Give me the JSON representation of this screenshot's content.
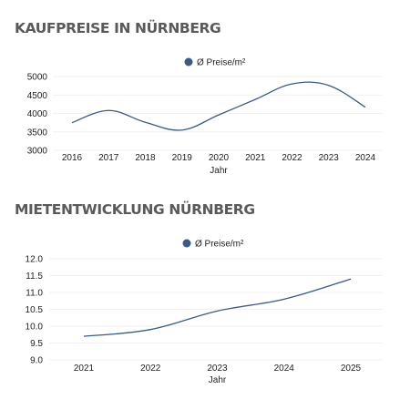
{
  "sections": [
    {
      "title": "KAUFPREISE IN NÜRNBERG",
      "chart_data": {
        "type": "line",
        "x": [
          "2016",
          "2017",
          "2018",
          "2019",
          "2020",
          "2021",
          "2022",
          "2023",
          "2024"
        ],
        "series": [
          {
            "name": "Ø Preise/m²",
            "values": [
              3750,
              4080,
              3760,
              3550,
              3960,
              4380,
              4800,
              4760,
              4170
            ]
          }
        ],
        "xlabel": "Jahr",
        "ylabel": "",
        "ylim": [
          3000,
          5000
        ],
        "yticks": [
          3000,
          3500,
          4000,
          4500,
          5000
        ],
        "legend": "top-center",
        "grid": true
      }
    },
    {
      "title": "MIETENTWICKLUNG NÜRNBERG",
      "chart_data": {
        "type": "line",
        "x": [
          "2021",
          "2022",
          "2023",
          "2024",
          "2025"
        ],
        "series": [
          {
            "name": "Ø Preise/m²",
            "values": [
              9.7,
              9.9,
              10.45,
              10.8,
              11.4
            ]
          }
        ],
        "xlabel": "Jahr",
        "ylabel": "",
        "ylim": [
          9.0,
          12.0
        ],
        "yticks": [
          "9.0",
          "9.5",
          "10.0",
          "10.5",
          "11.0",
          "11.5",
          "12.0"
        ],
        "legend": "top-center",
        "grid": true
      }
    }
  ],
  "colors": {
    "series": "#3d5a80",
    "grid": "#f1f1f1",
    "text": "#222222",
    "title": "#5a5a5a"
  }
}
